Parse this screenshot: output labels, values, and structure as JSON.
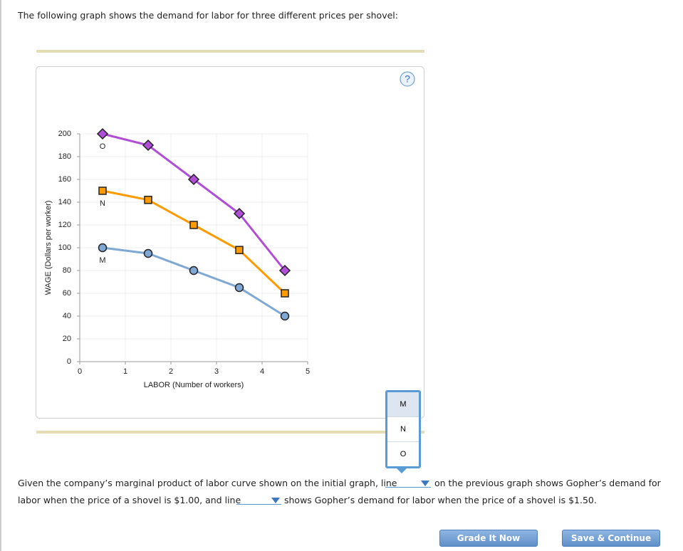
{
  "intro": "The following graph shows the demand for labor for three different prices per shovel:",
  "help_icon": "?",
  "chart_data": {
    "type": "line",
    "x_label": "LABOR (Number of workers)",
    "y_label": "WAGE (Dollars per worker)",
    "x": [
      0.5,
      1.5,
      2.5,
      3.5,
      4.5
    ],
    "series": [
      {
        "name": "O",
        "color": "#b04ed8",
        "marker": "diamond",
        "values": [
          200,
          190,
          160,
          130,
          80
        ]
      },
      {
        "name": "N",
        "color": "#ff9a00",
        "marker": "square",
        "values": [
          150,
          142,
          120,
          98,
          60
        ]
      },
      {
        "name": "M",
        "color": "#7fa9d4",
        "marker": "circle",
        "values": [
          100,
          95,
          80,
          65,
          40
        ]
      }
    ],
    "xlim": [
      0,
      5
    ],
    "xticks": [
      0,
      1,
      2,
      3,
      4,
      5
    ],
    "ylim": [
      0,
      200
    ],
    "yticks": [
      0,
      20,
      40,
      60,
      80,
      100,
      120,
      140,
      160,
      180,
      200
    ],
    "grid": true
  },
  "dropdown": {
    "options": [
      "M",
      "N",
      "O"
    ]
  },
  "question": {
    "part1": "Given the company’s marginal product of labor curve shown on the initial graph, line",
    "part2": "on the previous graph shows Gopher’s demand for",
    "part3": "labor when the price of a shovel is $1.00, and line",
    "part4": "shows Gopher’s demand for labor when the price of a shovel is $1.50."
  },
  "buttons": [
    "Grade It Now",
    "Save & Continue"
  ]
}
